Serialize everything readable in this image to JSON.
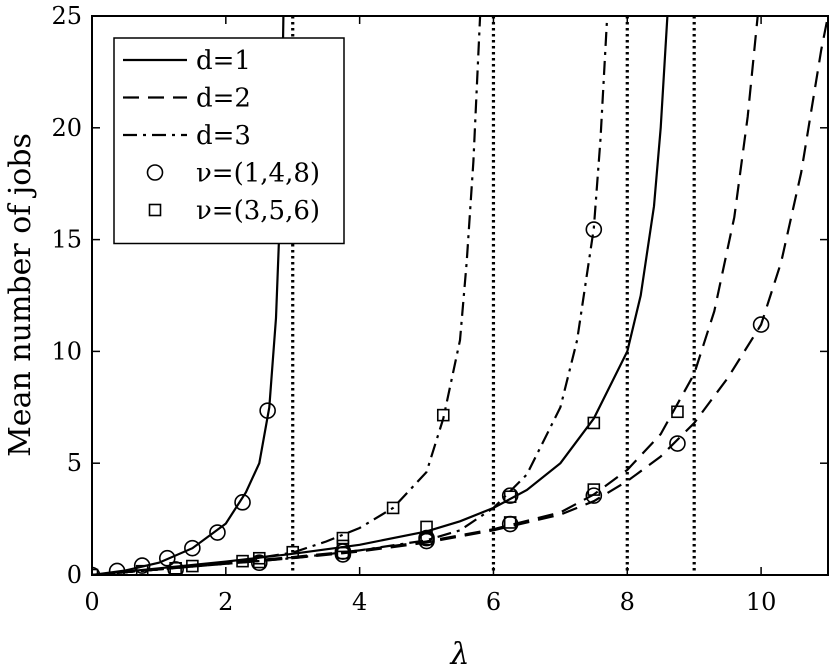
{
  "chart_data": {
    "type": "line",
    "title": "",
    "xlabel": "λ",
    "ylabel": "Mean number of jobs",
    "xlim": [
      0,
      11
    ],
    "ylim": [
      0,
      25
    ],
    "xticks": [
      0,
      2,
      4,
      6,
      8,
      10
    ],
    "yticks": [
      0,
      5,
      10,
      15,
      20,
      25
    ],
    "grid": false,
    "legend_position": "top-left",
    "vertical_lines": [
      3,
      6,
      8,
      9
    ],
    "series": [
      {
        "name": "d=1",
        "style": "solid",
        "group": "(1,4,8)",
        "x": [
          0,
          0.5,
          1.0,
          1.5,
          2.0,
          2.3,
          2.5,
          2.65,
          2.75,
          2.82,
          2.86
        ],
        "y": [
          0,
          0.2,
          0.55,
          1.2,
          2.3,
          3.7,
          5.0,
          7.5,
          11.5,
          17.0,
          25
        ]
      },
      {
        "name": "d=1",
        "style": "solid",
        "group": "(3,5,6)",
        "x": [
          0,
          1,
          2,
          3,
          4,
          5,
          5.5,
          6,
          6.5,
          7,
          7.5,
          8,
          8.2,
          8.4,
          8.5,
          8.6
        ],
        "y": [
          0,
          0.3,
          0.6,
          0.95,
          1.35,
          1.95,
          2.4,
          3.0,
          3.8,
          5.0,
          7.0,
          10.0,
          12.5,
          16.5,
          20.0,
          25
        ]
      },
      {
        "name": "d=2",
        "style": "dashed",
        "group": "(1,4,8)",
        "x": [
          0,
          1,
          2,
          3,
          4,
          5,
          6,
          7,
          7.5,
          8,
          8.5,
          9,
          9.5,
          10,
          10.3,
          10.6,
          10.9,
          11
        ],
        "y": [
          0,
          0.25,
          0.5,
          0.75,
          1.05,
          1.45,
          2.0,
          2.7,
          3.3,
          4.2,
          5.3,
          6.8,
          8.8,
          11.2,
          14.0,
          18.0,
          23.5,
          25
        ]
      },
      {
        "name": "d=2",
        "style": "dashed",
        "group": "(3,5,6)",
        "x": [
          0,
          1,
          2,
          3,
          4,
          5,
          6,
          7,
          7.5,
          8,
          8.5,
          9,
          9.3,
          9.6,
          9.8,
          9.95
        ],
        "y": [
          0,
          0.25,
          0.55,
          0.8,
          1.1,
          1.5,
          2.05,
          2.8,
          3.6,
          4.7,
          6.3,
          9.0,
          11.8,
          16.0,
          20.5,
          25
        ]
      },
      {
        "name": "d=3",
        "style": "dashdot",
        "group": "(1,4,8)",
        "x": [
          0,
          1,
          2,
          3,
          4,
          5,
          5.5,
          6,
          6.5,
          7,
          7.25,
          7.5,
          7.6,
          7.7
        ],
        "y": [
          0,
          0.25,
          0.5,
          0.75,
          1.1,
          1.55,
          2.0,
          3.0,
          4.5,
          7.5,
          10.5,
          15.5,
          19.5,
          25
        ]
      },
      {
        "name": "d=3",
        "style": "dashdot",
        "group": "(3,5,6)",
        "x": [
          0,
          1,
          2,
          3,
          3.5,
          4,
          4.5,
          5,
          5.25,
          5.5,
          5.6,
          5.7,
          5.8
        ],
        "y": [
          0,
          0.25,
          0.55,
          1.0,
          1.5,
          2.1,
          3.0,
          4.6,
          7.0,
          10.5,
          14.0,
          18.5,
          25
        ]
      },
      {
        "name": "ν=(1,4,8)",
        "marker": "circle",
        "x": [
          0,
          0.375,
          0.75,
          1.125,
          1.5,
          1.875,
          2.25,
          2.625,
          1.25,
          2.5,
          3.75,
          5.0,
          6.25,
          7.5,
          8.75,
          10.0,
          3.75,
          5.0,
          6.25,
          7.5
        ],
        "y": [
          0,
          0.18,
          0.42,
          0.75,
          1.2,
          1.9,
          3.25,
          7.35,
          0.25,
          0.55,
          0.92,
          1.52,
          2.28,
          3.55,
          5.88,
          11.2,
          1.05,
          1.65,
          3.55,
          15.45
        ]
      },
      {
        "name": "ν=(3,5,6)",
        "marker": "square",
        "x": [
          0,
          0.75,
          1.5,
          2.25,
          3.0,
          3.75,
          4.5,
          5.25,
          1.25,
          2.5,
          3.75,
          5.0,
          6.25,
          7.5,
          8.75,
          2.5,
          3.75,
          5.0,
          6.25,
          7.5
        ],
        "y": [
          0,
          0.17,
          0.4,
          0.62,
          1.02,
          1.65,
          3.0,
          7.15,
          0.3,
          0.58,
          0.98,
          1.6,
          2.35,
          3.82,
          7.3,
          0.75,
          1.3,
          2.15,
          3.5,
          6.8
        ]
      }
    ]
  }
}
